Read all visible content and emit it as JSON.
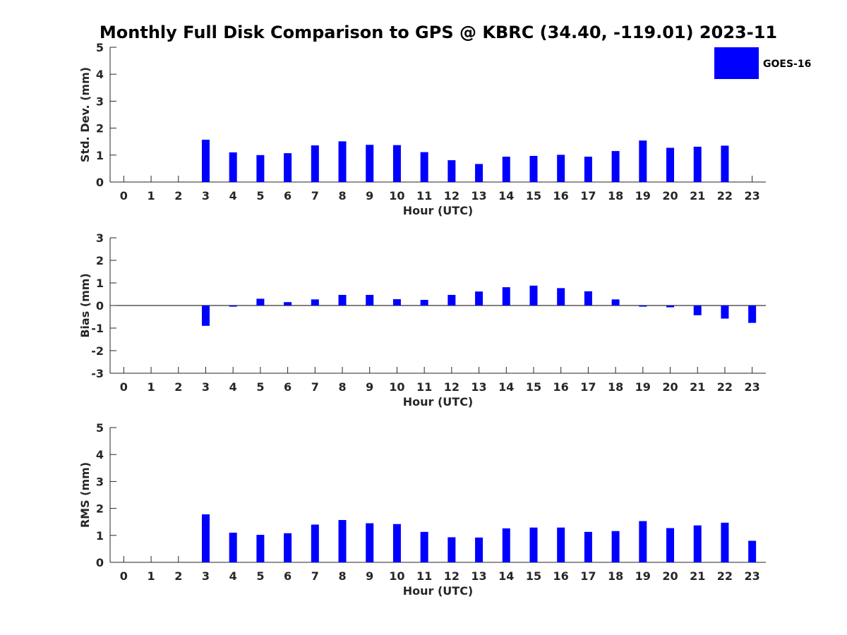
{
  "chart_data": [
    {
      "type": "bar",
      "title": "Monthly Full Disk Comparison to GPS @ KBRC (34.40, -119.01) 2023-11",
      "xlabel": "Hour (UTC)",
      "ylabel": "Std. Dev. (mm)",
      "ylim": [
        0,
        5
      ],
      "yticks": [
        "0",
        "1",
        "2",
        "3",
        "4",
        "5"
      ],
      "categories": [
        "0",
        "1",
        "2",
        "3",
        "4",
        "5",
        "6",
        "7",
        "8",
        "9",
        "10",
        "11",
        "12",
        "13",
        "14",
        "15",
        "16",
        "17",
        "18",
        "19",
        "20",
        "21",
        "22",
        "23"
      ],
      "series": [
        {
          "name": "GOES-16",
          "color": "#0000ff",
          "values": [
            null,
            null,
            null,
            1.57,
            1.1,
            1.0,
            1.07,
            1.36,
            1.51,
            1.38,
            1.37,
            1.11,
            0.81,
            0.67,
            0.94,
            0.97,
            1.01,
            0.94,
            1.15,
            1.54,
            1.27,
            1.31,
            1.35,
            null
          ]
        }
      ],
      "legend": "top-right",
      "grid": false
    },
    {
      "type": "bar",
      "xlabel": "Hour (UTC)",
      "ylabel": "Bias (mm)",
      "ylim": [
        -3,
        3
      ],
      "yticks": [
        "-3",
        "-2",
        "-1",
        "0",
        "1",
        "2",
        "3"
      ],
      "categories": [
        "0",
        "1",
        "2",
        "3",
        "4",
        "5",
        "6",
        "7",
        "8",
        "9",
        "10",
        "11",
        "12",
        "13",
        "14",
        "15",
        "16",
        "17",
        "18",
        "19",
        "20",
        "21",
        "22",
        "23"
      ],
      "series": [
        {
          "color": "#0000ff",
          "values": [
            null,
            null,
            null,
            -0.9,
            -0.05,
            0.3,
            0.15,
            0.27,
            0.47,
            0.47,
            0.28,
            0.25,
            0.47,
            0.62,
            0.81,
            0.88,
            0.77,
            0.63,
            0.27,
            -0.05,
            -0.08,
            -0.43,
            -0.58,
            -0.77
          ]
        }
      ],
      "grid": false
    },
    {
      "type": "bar",
      "xlabel": "Hour (UTC)",
      "ylabel": "RMS (mm)",
      "ylim": [
        0,
        5
      ],
      "yticks": [
        "0",
        "1",
        "2",
        "3",
        "4",
        "5"
      ],
      "categories": [
        "0",
        "1",
        "2",
        "3",
        "4",
        "5",
        "6",
        "7",
        "8",
        "9",
        "10",
        "11",
        "12",
        "13",
        "14",
        "15",
        "16",
        "17",
        "18",
        "19",
        "20",
        "21",
        "22",
        "23"
      ],
      "series": [
        {
          "color": "#0000ff",
          "values": [
            null,
            null,
            null,
            1.78,
            1.1,
            1.02,
            1.08,
            1.4,
            1.57,
            1.45,
            1.42,
            1.13,
            0.93,
            0.92,
            1.26,
            1.29,
            1.29,
            1.13,
            1.16,
            1.53,
            1.27,
            1.37,
            1.47,
            0.8
          ]
        }
      ],
      "grid": false
    }
  ]
}
